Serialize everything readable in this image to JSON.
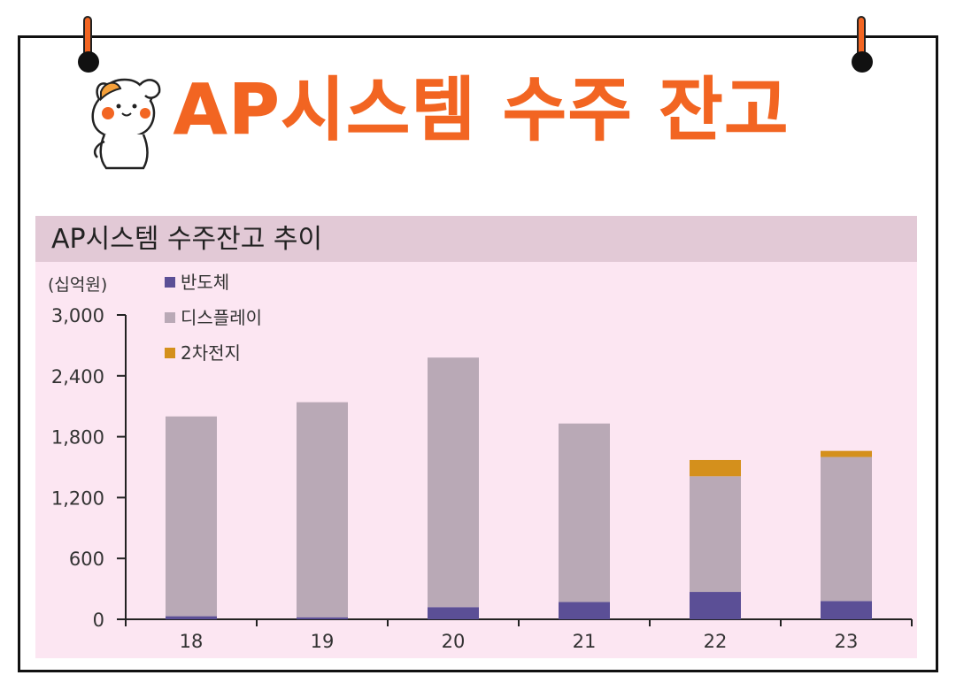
{
  "page": {
    "title": "AP시스템 수주 잔고",
    "accent_color": "#f26522",
    "mascot_icon": "cat-saluting-icon",
    "pin_icon": "pushpin-icon"
  },
  "chart_data": {
    "type": "bar",
    "stacked": true,
    "title": "AP시스템 수주잔고 추이",
    "unit_label": "(십억원)",
    "categories": [
      "18",
      "19",
      "20",
      "21",
      "22",
      "23"
    ],
    "series": [
      {
        "name": "반도체",
        "color": "#5b4f96",
        "values": [
          30,
          20,
          120,
          170,
          270,
          180
        ]
      },
      {
        "name": "디스플레이",
        "color": "#b9a9b6",
        "values": [
          1970,
          2120,
          2460,
          1760,
          1140,
          1420
        ]
      },
      {
        "name": "2차전지",
        "color": "#d4901c",
        "values": [
          0,
          0,
          0,
          0,
          160,
          60
        ]
      }
    ],
    "y_ticks": [
      "0",
      "600",
      "1,200",
      "1,800",
      "2,400",
      "3,000"
    ],
    "y_tick_values": [
      0,
      600,
      1200,
      1800,
      2400,
      3000
    ],
    "ylim": [
      0,
      3000
    ],
    "grid": false,
    "legend_position": "top-left"
  }
}
